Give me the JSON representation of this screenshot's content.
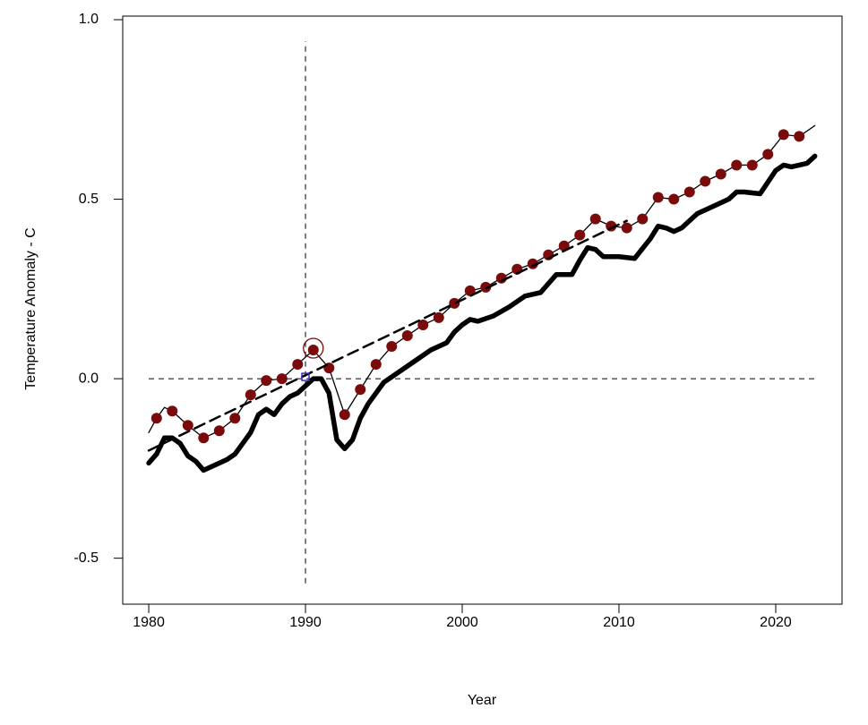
{
  "chart_data": {
    "type": "line",
    "xlabel": "Year",
    "ylabel": "Temperature Anomaly - C",
    "xlim": [
      1978.34,
      2024.23
    ],
    "ylim": [
      -0.628,
      1.01
    ],
    "xticks": [
      1980,
      1990,
      2000,
      2010,
      2020
    ],
    "yticks": [
      -0.5,
      {
        "value": 0,
        "label": "0.0"
      },
      0.5,
      {
        "value": 1,
        "label": "1.0"
      }
    ],
    "series": [
      {
        "kind": "line",
        "color": "#000000",
        "x": [
          1980,
          1980.5,
          1981,
          1981.5,
          1982,
          1982.5,
          1983,
          1983.5,
          1984,
          1984.5,
          1985,
          1985.5,
          1986,
          1986.5,
          1987,
          1987.5,
          1988,
          1988.5,
          1989,
          1989.5,
          1990,
          1990.5,
          1991,
          1991.5,
          1992,
          1992.5,
          1993,
          1993.5,
          1994,
          1994.5,
          1995,
          1996,
          1997,
          1998,
          1999,
          1999.5,
          2000,
          2000.5,
          2001,
          2002,
          2003,
          2004,
          2005,
          2006,
          2007,
          2007.5,
          2008,
          2008.5,
          2009,
          2010,
          2011,
          2012,
          2012.5,
          2013,
          2013.5,
          2014,
          2015,
          2016,
          2017,
          2017.5,
          2018,
          2019,
          2020,
          2020.5,
          2021,
          2022,
          2022.5
        ],
        "values": [
          -0.235,
          -0.21,
          -0.165,
          -0.165,
          -0.18,
          -0.215,
          -0.23,
          -0.255,
          -0.245,
          -0.235,
          -0.225,
          -0.21,
          -0.18,
          -0.15,
          -0.1,
          -0.085,
          -0.1,
          -0.07,
          -0.05,
          -0.04,
          -0.02,
          0.0,
          0.0,
          -0.04,
          -0.17,
          -0.195,
          -0.17,
          -0.11,
          -0.07,
          -0.04,
          -0.01,
          0.02,
          0.05,
          0.08,
          0.1,
          0.13,
          0.15,
          0.165,
          0.16,
          0.175,
          0.2,
          0.23,
          0.24,
          0.29,
          0.29,
          0.33,
          0.365,
          0.36,
          0.34,
          0.34,
          0.335,
          0.39,
          0.425,
          0.42,
          0.41,
          0.42,
          0.46,
          0.48,
          0.5,
          0.52,
          0.52,
          0.515,
          0.58,
          0.595,
          0.59,
          0.6,
          0.62
        ]
      },
      {
        "kind": "thin",
        "color": "#000000",
        "x": [
          1980,
          1980.5,
          1981,
          1981.5,
          1982.5,
          1983.5,
          1984.5,
          1985.5,
          1986.5,
          1987.5,
          1988.5,
          1989.5,
          1990.5,
          1991.5,
          1992.5,
          1993.5,
          1994.5,
          1995.5,
          1996.5,
          1997.5,
          1998.5,
          1999.5,
          2000.5,
          2001.5,
          2002.5,
          2003.5,
          2004.5,
          2005.5,
          2006.5,
          2007.5,
          2008.5,
          2009.5,
          2010.5,
          2011.5,
          2012.5,
          2013.5,
          2014.5,
          2015.5,
          2016.5,
          2017.5,
          2018.5,
          2019.5,
          2020.5,
          2021.5,
          2022.5
        ],
        "values": [
          -0.15,
          -0.11,
          -0.08,
          -0.09,
          -0.13,
          -0.165,
          -0.145,
          -0.11,
          -0.045,
          -0.005,
          0.0,
          0.04,
          0.08,
          0.03,
          -0.1,
          -0.03,
          0.04,
          0.09,
          0.12,
          0.15,
          0.17,
          0.21,
          0.245,
          0.255,
          0.28,
          0.305,
          0.32,
          0.345,
          0.37,
          0.4,
          0.445,
          0.425,
          0.42,
          0.445,
          0.505,
          0.5,
          0.52,
          0.55,
          0.57,
          0.595,
          0.595,
          0.625,
          0.68,
          0.675,
          0.705
        ]
      },
      {
        "kind": "points",
        "color": "#7b0a0a",
        "x": [
          1980.5,
          1981.5,
          1982.5,
          1983.5,
          1984.5,
          1985.5,
          1986.5,
          1987.5,
          1988.5,
          1989.5,
          1990.5,
          1991.5,
          1992.5,
          1993.5,
          1994.5,
          1995.5,
          1996.5,
          1997.5,
          1998.5,
          1999.5,
          2000.5,
          2001.5,
          2002.5,
          2003.5,
          2004.5,
          2005.5,
          2006.5,
          2007.5,
          2008.5,
          2009.5,
          2010.5,
          2011.5,
          2012.5,
          2013.5,
          2014.5,
          2015.5,
          2016.5,
          2017.5,
          2018.5,
          2019.5,
          2020.5,
          2021.5
        ],
        "values": [
          -0.11,
          -0.09,
          -0.13,
          -0.165,
          -0.145,
          -0.11,
          -0.045,
          -0.005,
          0.0,
          0.04,
          0.08,
          0.03,
          -0.1,
          -0.03,
          0.04,
          0.09,
          0.12,
          0.15,
          0.17,
          0.21,
          0.245,
          0.255,
          0.28,
          0.305,
          0.32,
          0.345,
          0.37,
          0.4,
          0.445,
          0.425,
          0.42,
          0.445,
          0.505,
          0.5,
          0.52,
          0.55,
          0.57,
          0.595,
          0.595,
          0.625,
          0.68,
          0.675
        ]
      },
      {
        "kind": "trend",
        "color": "#000000",
        "x": [
          1980,
          2010.5
        ],
        "values": [
          -0.2,
          0.44
        ]
      }
    ],
    "vline": {
      "x": 1990,
      "y": [
        -0.57,
        0.94
      ]
    },
    "hline": {
      "y": 0,
      "x": [
        1980,
        2022.5
      ]
    },
    "highlight": {
      "x": 1990.5,
      "y": 0.085,
      "color": "#7b0a0a"
    },
    "marker": {
      "x": 1990,
      "y": 0.005,
      "color": "#3b2bbf"
    }
  }
}
